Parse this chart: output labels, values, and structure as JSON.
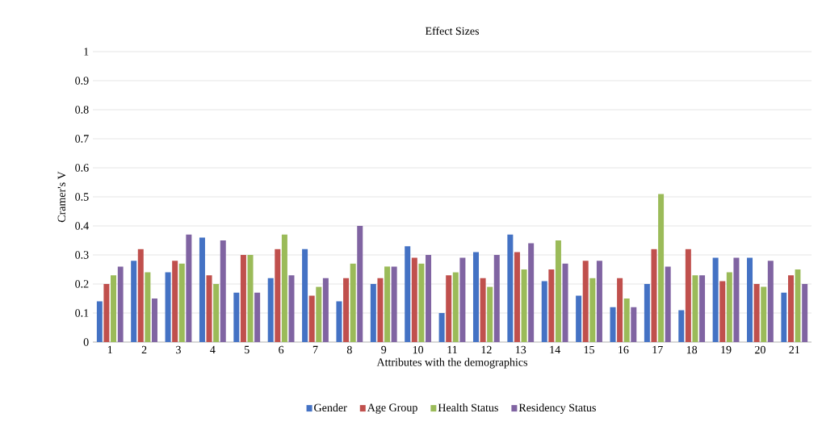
{
  "chart_data": {
    "type": "bar",
    "title": "Effect Sizes",
    "xlabel": "Attributes with the demographics",
    "ylabel": "Cramer's V",
    "categories": [
      "1",
      "2",
      "3",
      "4",
      "5",
      "6",
      "7",
      "8",
      "9",
      "10",
      "11",
      "12",
      "13",
      "14",
      "15",
      "16",
      "17",
      "18",
      "19",
      "20",
      "21"
    ],
    "series": [
      {
        "name": "Gender",
        "color": "#4472c4",
        "values": [
          0.14,
          0.28,
          0.24,
          0.36,
          0.17,
          0.22,
          0.32,
          0.14,
          0.2,
          0.33,
          0.1,
          0.31,
          0.37,
          0.21,
          0.16,
          0.12,
          0.2,
          0.11,
          0.29,
          0.29,
          0.17
        ]
      },
      {
        "name": "Age Group",
        "color": "#c0504d",
        "values": [
          0.2,
          0.32,
          0.28,
          0.23,
          0.3,
          0.32,
          0.16,
          0.22,
          0.22,
          0.29,
          0.23,
          0.22,
          0.31,
          0.25,
          0.28,
          0.22,
          0.32,
          0.32,
          0.21,
          0.2,
          0.23
        ]
      },
      {
        "name": "Health Status",
        "color": "#9bbb59",
        "values": [
          0.23,
          0.24,
          0.27,
          0.2,
          0.3,
          0.37,
          0.19,
          0.27,
          0.26,
          0.27,
          0.24,
          0.19,
          0.25,
          0.35,
          0.22,
          0.15,
          0.51,
          0.23,
          0.24,
          0.19,
          0.25
        ]
      },
      {
        "name": "Residency Status",
        "color": "#8064a2",
        "values": [
          0.26,
          0.15,
          0.37,
          0.35,
          0.17,
          0.23,
          0.22,
          0.4,
          0.26,
          0.3,
          0.29,
          0.3,
          0.34,
          0.27,
          0.28,
          0.12,
          0.26,
          0.23,
          0.29,
          0.28,
          0.2
        ]
      }
    ],
    "ylim": [
      0,
      1
    ],
    "yticks": [
      0,
      0.1,
      0.2,
      0.3,
      0.4,
      0.5,
      0.6,
      0.7,
      0.8,
      0.9,
      1
    ],
    "grid": "y",
    "legend": "bottom"
  }
}
